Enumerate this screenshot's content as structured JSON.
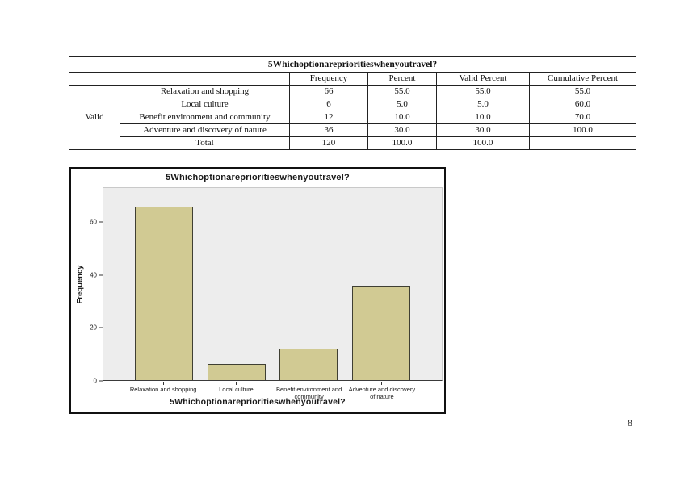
{
  "page": {
    "number": "8"
  },
  "table": {
    "title": "5Whichoptionareprioritieswhenyoutravel?",
    "columns": [
      "Frequency",
      "Percent",
      "Valid Percent",
      "Cumulative Percent"
    ],
    "row_group_label": "Valid",
    "rows": [
      {
        "label": "Relaxation and shopping",
        "frequency": "66",
        "percent": "55.0",
        "valid_percent": "55.0",
        "cumulative_percent": "55.0"
      },
      {
        "label": "Local culture",
        "frequency": "6",
        "percent": "5.0",
        "valid_percent": "5.0",
        "cumulative_percent": "60.0"
      },
      {
        "label": "Benefit environment and community",
        "frequency": "12",
        "percent": "10.0",
        "valid_percent": "10.0",
        "cumulative_percent": "70.0"
      },
      {
        "label": "Adventure and discovery of nature",
        "frequency": "36",
        "percent": "30.0",
        "valid_percent": "30.0",
        "cumulative_percent": "100.0"
      },
      {
        "label": "Total",
        "frequency": "120",
        "percent": "100.0",
        "valid_percent": "100.0",
        "cumulative_percent": ""
      }
    ]
  },
  "chart_data": {
    "type": "bar",
    "title": "5Whichoptionareprioritieswhenyoutravel?",
    "xlabel": "5Whichoptionareprioritieswhenyoutravel?",
    "ylabel": "Frequency",
    "categories": [
      "Relaxation and shopping",
      "Local culture",
      "Benefit environment and community",
      "Adventure and discovery of nature"
    ],
    "values": [
      66,
      6,
      12,
      36
    ],
    "ylim": [
      0,
      73
    ],
    "yticks": [
      0,
      20,
      40,
      60
    ],
    "grid": false,
    "legend": "none",
    "bar_color": "#d1ca93",
    "bar_border_color": "#3f3f33",
    "plot_background": "#ededed"
  }
}
